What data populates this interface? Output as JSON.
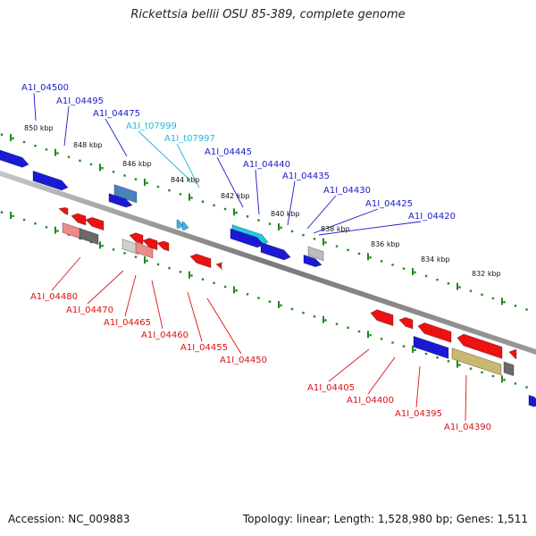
{
  "title": "Rickettsia bellii OSU 85-389, complete genome",
  "footer": {
    "accession": "Accession: NC_009883",
    "stats": "Topology: linear; Length: 1,528,980 bp; Genes: 1,511"
  },
  "colors": {
    "forward_label": "#1a1acc",
    "trna_label": "#22b8d8",
    "reverse_label": "#dd1111",
    "tick": "#1d8a1d",
    "axis": "#8c8c8c"
  },
  "scale_labels": [
    "850 kbp",
    "848 kbp",
    "846 kbp",
    "844 kbp",
    "842 kbp",
    "840 kbp",
    "838 kbp",
    "836 kbp",
    "834 kbp",
    "832 kbp"
  ],
  "forward_genes": [
    "A1I_04500",
    "A1I_04495",
    "A1I_04475",
    "A1I_t07999",
    "A1I_t07997",
    "A1I_04445",
    "A1I_04440",
    "A1I_04435",
    "A1I_04430",
    "A1I_04425",
    "A1I_04420"
  ],
  "reverse_genes": [
    "A1I_04480",
    "A1I_04470",
    "A1I_04465",
    "A1I_04460",
    "A1I_04455",
    "A1I_04450",
    "A1I_04405",
    "A1I_04400",
    "A1I_04395",
    "A1I_04390"
  ]
}
